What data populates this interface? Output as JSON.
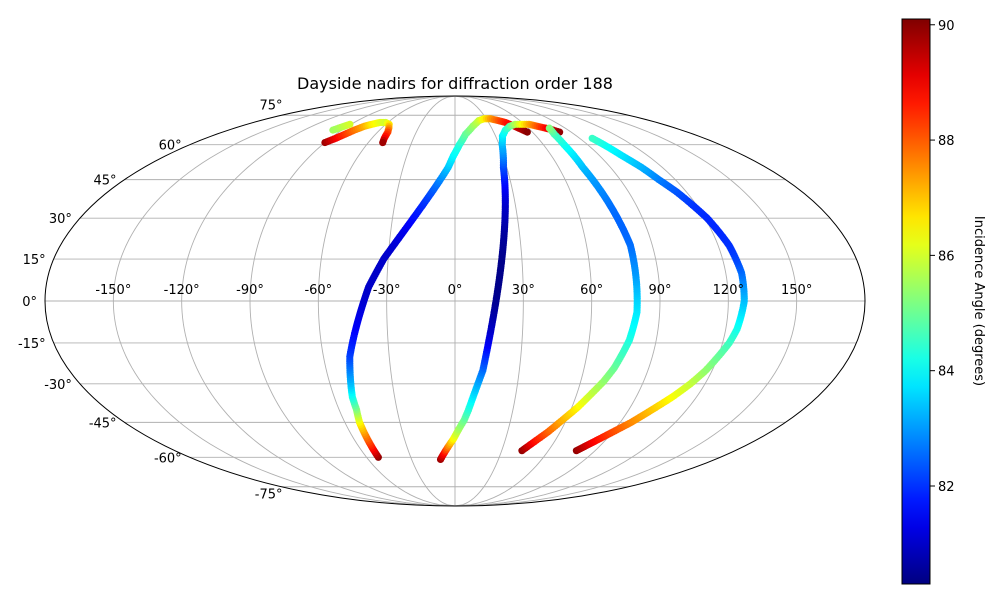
{
  "chart_data": {
    "type": "scatter",
    "projection": "mollweide",
    "title": "Dayside nadirs for diffraction order 188",
    "xlabel": "",
    "ylabel": "",
    "grid": true,
    "lon_ticks": [
      -150,
      -120,
      -90,
      -60,
      -30,
      0,
      30,
      60,
      90,
      120,
      150
    ],
    "lon_tick_labels": [
      "-150°",
      "-120°",
      "-90°",
      "-60°",
      "-30°",
      "0°",
      "30°",
      "60°",
      "90°",
      "120°",
      "150°"
    ],
    "lat_ticks": [
      -75,
      -60,
      -45,
      -30,
      -15,
      0,
      15,
      30,
      45,
      60,
      75
    ],
    "lat_tick_labels": [
      "-75°",
      "-60°",
      "-45°",
      "-30°",
      "-15°",
      "0°",
      "15°",
      "30°",
      "45°",
      "60°",
      "75°"
    ],
    "xlim": [
      -180,
      180
    ],
    "ylim": [
      -90,
      90
    ],
    "colormap": "jet",
    "colorbar": {
      "label": "Incidence Angle (degrees)",
      "min": 80.3,
      "max": 90.1,
      "ticks": [
        82,
        84,
        86,
        88,
        90
      ]
    },
    "series": [
      {
        "points": [
          [
            -90,
            61,
            89.8
          ],
          [
            -86,
            63,
            89.0
          ],
          [
            -83,
            65,
            88.4
          ],
          [
            -80,
            67,
            87.8
          ],
          [
            -76,
            69,
            87.2
          ],
          [
            -72,
            70,
            86.6
          ],
          [
            -67,
            71,
            86.2
          ],
          [
            -62,
            71,
            86.0
          ],
          [
            -57,
            70,
            86.6
          ],
          [
            -54,
            68,
            87.4
          ],
          [
            -52,
            66,
            88.2
          ],
          [
            -51,
            63,
            89.0
          ],
          [
            -50,
            61,
            89.8
          ]
        ]
      },
      {
        "points": [
          [
            -97,
            67,
            85.5
          ],
          [
            -95,
            68,
            85.6
          ],
          [
            -93,
            69,
            85.8
          ],
          [
            -91,
            70,
            86.0
          ]
        ]
      },
      {
        "points": [
          [
            -52,
            -60,
            89.9
          ],
          [
            -52,
            -55,
            88.6
          ],
          [
            -52,
            -50,
            87.6
          ],
          [
            -52,
            -45,
            86.5
          ],
          [
            -51,
            -40,
            85.3
          ],
          [
            -51,
            -35,
            84.2
          ],
          [
            -50,
            -30,
            83.4
          ],
          [
            -49,
            -25,
            82.8
          ],
          [
            -48,
            -20,
            82.2
          ],
          [
            -46,
            -15,
            81.8
          ],
          [
            -44,
            -10,
            81.5
          ],
          [
            -42,
            -5,
            81.3
          ],
          [
            -40,
            0,
            81.1
          ],
          [
            -38,
            5,
            81.0
          ],
          [
            -35,
            10,
            81.0
          ],
          [
            -32,
            15,
            81.0
          ],
          [
            -28,
            20,
            81.1
          ],
          [
            -24,
            25,
            81.3
          ],
          [
            -20,
            30,
            81.6
          ],
          [
            -16,
            35,
            81.9
          ],
          [
            -12,
            40,
            82.3
          ],
          [
            -8,
            45,
            82.8
          ],
          [
            -4,
            50,
            83.4
          ],
          [
            -1,
            55,
            83.9
          ],
          [
            3,
            60,
            84.3
          ],
          [
            8,
            65,
            84.9
          ],
          [
            15,
            69,
            85.4
          ],
          [
            22,
            72,
            85.9
          ],
          [
            28,
            73,
            86.5
          ],
          [
            34,
            73,
            87.3
          ],
          [
            40,
            72,
            88.0
          ],
          [
            45,
            71,
            88.6
          ],
          [
            50,
            69,
            89.2
          ],
          [
            54,
            67,
            89.7
          ],
          [
            56,
            66,
            90.0
          ]
        ]
      },
      {
        "points": [
          [
            -10,
            -61,
            89.8
          ],
          [
            -7,
            -58,
            88.8
          ],
          [
            -4,
            -55,
            87.6
          ],
          [
            -1,
            -52,
            86.5
          ],
          [
            2,
            -48,
            85.6
          ],
          [
            5,
            -44,
            85.0
          ],
          [
            7,
            -40,
            84.4
          ],
          [
            9,
            -35,
            83.8
          ],
          [
            11,
            -30,
            83.2
          ],
          [
            13,
            -25,
            82.6
          ],
          [
            14,
            -20,
            82.0
          ],
          [
            15,
            -15,
            81.4
          ],
          [
            16,
            -10,
            81.0
          ],
          [
            17,
            -5,
            80.7
          ],
          [
            18,
            0,
            80.5
          ],
          [
            19,
            5,
            80.4
          ],
          [
            20,
            10,
            80.4
          ],
          [
            21,
            15,
            80.4
          ],
          [
            22,
            20,
            80.5
          ],
          [
            23,
            25,
            80.6
          ],
          [
            24,
            30,
            80.8
          ],
          [
            25,
            35,
            81.0
          ],
          [
            26,
            40,
            81.3
          ],
          [
            27,
            45,
            81.7
          ],
          [
            28,
            50,
            82.2
          ],
          [
            30,
            55,
            82.8
          ],
          [
            32,
            60,
            83.3
          ],
          [
            35,
            64,
            83.8
          ],
          [
            40,
            67,
            84.2
          ],
          [
            46,
            69,
            84.8
          ],
          [
            52,
            70,
            85.6
          ],
          [
            58,
            70,
            86.4
          ],
          [
            64,
            70,
            87.2
          ],
          [
            69,
            69,
            88.0
          ],
          [
            74,
            68,
            88.8
          ],
          [
            78,
            67,
            89.4
          ],
          [
            81,
            66,
            89.9
          ]
        ]
      },
      {
        "points": [
          [
            43,
            -57,
            89.9
          ],
          [
            48,
            -53,
            88.8
          ],
          [
            53,
            -49,
            88.0
          ],
          [
            58,
            -44,
            87.2
          ],
          [
            63,
            -39,
            86.5
          ],
          [
            67,
            -34,
            85.9
          ],
          [
            71,
            -29,
            85.4
          ],
          [
            74,
            -24,
            85.0
          ],
          [
            76,
            -19,
            84.6
          ],
          [
            78,
            -14,
            84.3
          ],
          [
            79,
            -9,
            84.0
          ],
          [
            80,
            -4,
            83.8
          ],
          [
            80,
            0,
            83.6
          ],
          [
            80,
            5,
            83.3
          ],
          [
            80,
            10,
            83.0
          ],
          [
            80,
            15,
            82.8
          ],
          [
            80,
            20,
            82.6
          ],
          [
            79,
            25,
            82.5
          ],
          [
            78,
            30,
            82.5
          ],
          [
            77,
            35,
            82.6
          ],
          [
            76,
            40,
            82.8
          ],
          [
            75,
            45,
            83.0
          ],
          [
            74,
            50,
            83.3
          ],
          [
            74,
            55,
            83.7
          ],
          [
            74,
            60,
            84.1
          ],
          [
            75,
            65,
            84.6
          ],
          [
            77,
            68,
            85.2
          ]
        ]
      },
      {
        "points": [
          [
            78,
            -57,
            89.9
          ],
          [
            84,
            -53,
            88.9
          ],
          [
            90,
            -49,
            88.2
          ],
          [
            96,
            -45,
            87.6
          ],
          [
            102,
            -40,
            87.0
          ],
          [
            108,
            -35,
            86.4
          ],
          [
            113,
            -30,
            85.9
          ],
          [
            117,
            -25,
            85.4
          ],
          [
            120,
            -20,
            85.0
          ],
          [
            123,
            -15,
            84.6
          ],
          [
            125,
            -10,
            84.2
          ],
          [
            126,
            -5,
            83.8
          ],
          [
            127,
            0,
            83.4
          ],
          [
            127,
            5,
            83.0
          ],
          [
            127,
            10,
            82.6
          ],
          [
            126,
            15,
            82.2
          ],
          [
            125,
            20,
            82.0
          ],
          [
            123,
            25,
            81.9
          ],
          [
            121,
            30,
            81.9
          ],
          [
            118,
            35,
            82.0
          ],
          [
            115,
            40,
            82.3
          ],
          [
            111,
            45,
            82.7
          ],
          [
            108,
            50,
            83.2
          ],
          [
            104,
            55,
            83.7
          ],
          [
            101,
            60,
            84.1
          ],
          [
            99,
            63,
            84.5
          ]
        ]
      }
    ]
  }
}
